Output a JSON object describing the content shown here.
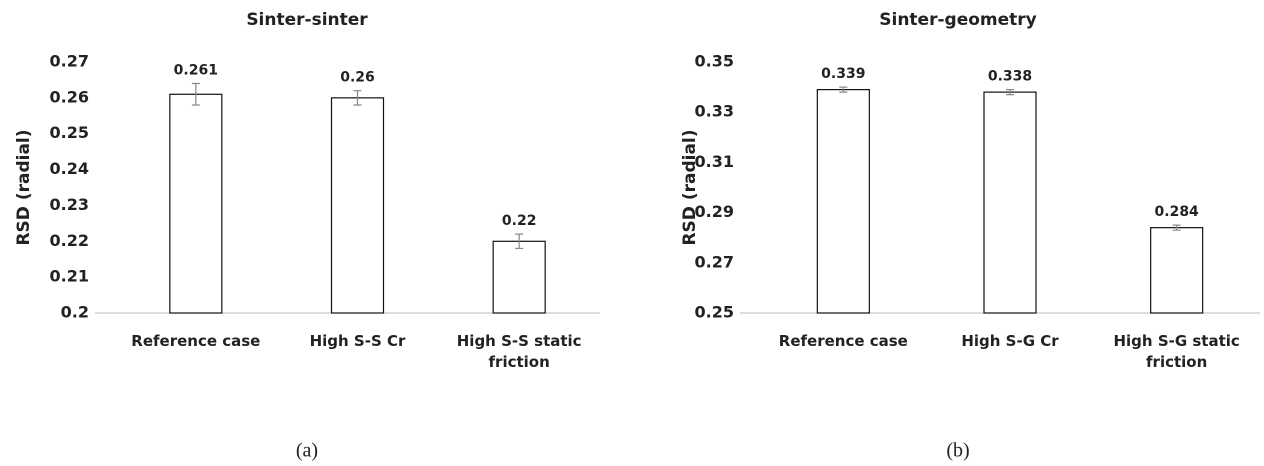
{
  "chart_data": [
    {
      "type": "bar",
      "title": "Sinter-sinter",
      "y_label": "RSD (radial)",
      "categories": [
        "Reference case",
        "High S-S Cr",
        "High S-S static friction"
      ],
      "values": [
        0.261,
        0.26,
        0.22
      ],
      "errors": [
        0.003,
        0.002,
        0.002
      ],
      "ylim": [
        0.2,
        0.27
      ],
      "yticks": [
        0.2,
        0.21,
        0.22,
        0.23,
        0.24,
        0.25,
        0.26,
        0.27
      ],
      "color": "#ffffff",
      "caption": "(a)"
    },
    {
      "type": "bar",
      "title": "Sinter-geometry",
      "y_label": "RSD (radial)",
      "categories": [
        "Reference case",
        "High S-G Cr",
        "High S-G static friction"
      ],
      "values": [
        0.339,
        0.338,
        0.284
      ],
      "errors": [
        0.001,
        0.001,
        0.001
      ],
      "ylim": [
        0.25,
        0.35
      ],
      "yticks": [
        0.25,
        0.27,
        0.29,
        0.31,
        0.33,
        0.35
      ],
      "color": "#ffffff",
      "caption": "(b)"
    }
  ]
}
